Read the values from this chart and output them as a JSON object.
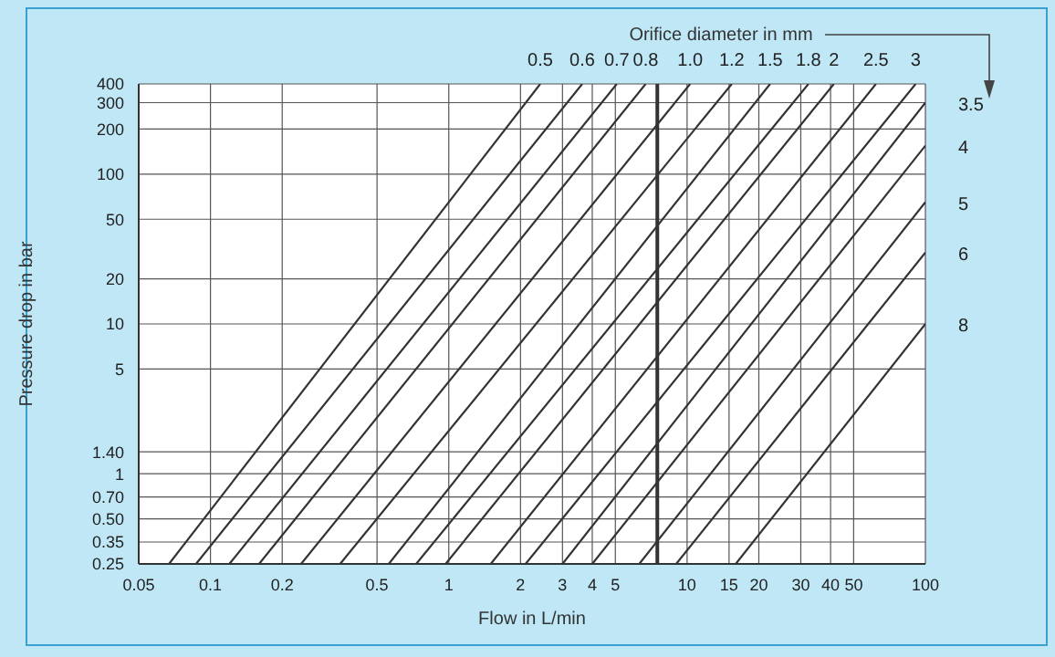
{
  "chart_data": {
    "type": "line",
    "xlabel": "Flow in L/min",
    "ylabel": "Pressure drop in bar",
    "legend_title": "Orifice diameter in mm",
    "log": "xy",
    "grid": true,
    "marker": "none",
    "line_style": "solid",
    "xlim": [
      0.05,
      100
    ],
    "ylim": [
      0.25,
      400
    ],
    "xticks": [
      0.05,
      0.1,
      0.2,
      0.5,
      1,
      2,
      3,
      4,
      5,
      10,
      15,
      20,
      30,
      40,
      50,
      100
    ],
    "yticks": [
      0.25,
      0.35,
      {
        "value": 0.5,
        "label": "0.50"
      },
      {
        "value": 0.7,
        "label": "0.70"
      },
      1,
      {
        "value": 1.4,
        "label": "1.40"
      },
      5,
      10,
      20,
      50,
      100,
      200,
      300,
      400
    ],
    "ref_lines": [
      {
        "axis": "x",
        "value": 7.5,
        "label": null,
        "color": "#333333"
      }
    ],
    "series": [
      {
        "name": "0.5",
        "color": "#333333",
        "x": [
          0.067,
          2.42
        ],
        "values": [
          0.25,
          400
        ]
      },
      {
        "name": "0.6",
        "color": "#333333",
        "x": [
          0.087,
          3.63
        ],
        "values": [
          0.25,
          400
        ]
      },
      {
        "name": "0.7",
        "color": "#333333",
        "x": [
          0.12,
          5.07
        ],
        "values": [
          0.25,
          400
        ]
      },
      {
        "name": "0.8",
        "color": "#333333",
        "x": [
          0.16,
          6.7
        ],
        "values": [
          0.25,
          400
        ]
      },
      {
        "name": "1.0",
        "color": "#333333",
        "x": [
          0.24,
          10.3
        ],
        "values": [
          0.25,
          400
        ]
      },
      {
        "name": "1.2",
        "color": "#333333",
        "x": [
          0.35,
          15.4
        ],
        "values": [
          0.25,
          400
        ]
      },
      {
        "name": "1.5",
        "color": "#333333",
        "x": [
          0.56,
          22.3
        ],
        "values": [
          0.25,
          400
        ]
      },
      {
        "name": "1.8",
        "color": "#333333",
        "x": [
          0.73,
          32.3
        ],
        "values": [
          0.25,
          400
        ]
      },
      {
        "name": "2",
        "color": "#333333",
        "x": [
          0.97,
          41.3
        ],
        "values": [
          0.25,
          400
        ]
      },
      {
        "name": "2.5",
        "color": "#333333",
        "x": [
          1.5,
          62
        ],
        "values": [
          0.25,
          400
        ]
      },
      {
        "name": "3",
        "color": "#333333",
        "x": [
          2.1,
          91
        ],
        "values": [
          0.25,
          400
        ]
      },
      {
        "name": "3.5",
        "color": "#333333",
        "x": [
          3.0,
          100
        ],
        "values": [
          0.25,
          300
        ]
      },
      {
        "name": "4",
        "color": "#333333",
        "x": [
          4.0,
          100
        ],
        "values": [
          0.25,
          155
        ]
      },
      {
        "name": "5",
        "color": "#333333",
        "x": [
          6.3,
          100
        ],
        "values": [
          0.25,
          65
        ]
      },
      {
        "name": "6",
        "color": "#333333",
        "x": [
          9.0,
          100
        ],
        "values": [
          0.25,
          30
        ]
      },
      {
        "name": "8",
        "color": "#333333",
        "x": [
          16,
          100
        ],
        "values": [
          0.25,
          10
        ]
      }
    ]
  }
}
